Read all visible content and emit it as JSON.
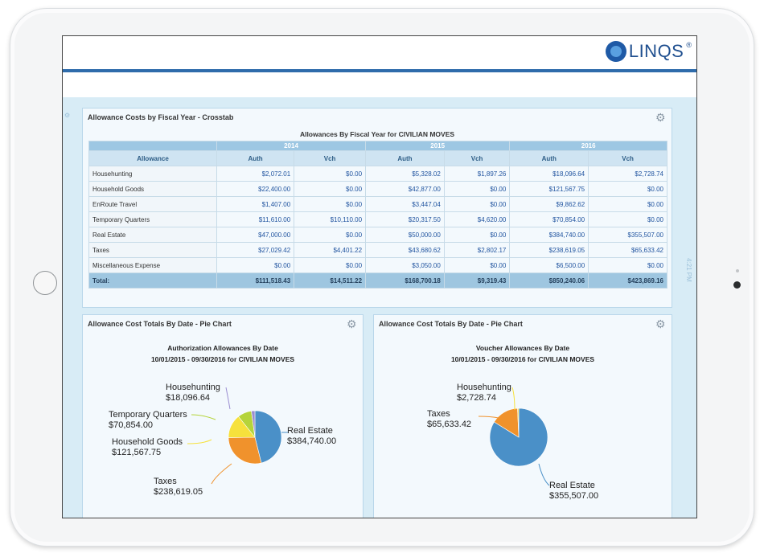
{
  "brand": {
    "logo_text": "LINQS",
    "logo_reg": "®"
  },
  "crosstab": {
    "panel_title": "Allowance Costs by Fiscal Year - Crosstab",
    "table_title": "Allowances By Fiscal Year for CIVILIAN MOVES",
    "years": [
      "2014",
      "2015",
      "2016"
    ],
    "col_allowance": "Allowance",
    "col_auth": "Auth",
    "col_vch": "Vch",
    "rows": [
      {
        "name": "Househunting",
        "v": [
          "$2,072.01",
          "$0.00",
          "$5,328.02",
          "$1,897.26",
          "$18,096.64",
          "$2,728.74"
        ]
      },
      {
        "name": "Household Goods",
        "v": [
          "$22,400.00",
          "$0.00",
          "$42,877.00",
          "$0.00",
          "$121,567.75",
          "$0.00"
        ]
      },
      {
        "name": "EnRoute Travel",
        "v": [
          "$1,407.00",
          "$0.00",
          "$3,447.04",
          "$0.00",
          "$9,862.62",
          "$0.00"
        ]
      },
      {
        "name": "Temporary Quarters",
        "v": [
          "$11,610.00",
          "$10,110.00",
          "$20,317.50",
          "$4,620.00",
          "$70,854.00",
          "$0.00"
        ]
      },
      {
        "name": "Real Estate",
        "v": [
          "$47,000.00",
          "$0.00",
          "$50,000.00",
          "$0.00",
          "$384,740.00",
          "$355,507.00"
        ]
      },
      {
        "name": "Taxes",
        "v": [
          "$27,029.42",
          "$4,401.22",
          "$43,680.62",
          "$2,802.17",
          "$238,619.05",
          "$65,633.42"
        ]
      },
      {
        "name": "Miscellaneous Expense",
        "v": [
          "$0.00",
          "$0.00",
          "$3,050.00",
          "$0.00",
          "$6,500.00",
          "$0.00"
        ]
      }
    ],
    "total": {
      "name": "Total:",
      "v": [
        "$111,518.43",
        "$14,511.22",
        "$168,700.18",
        "$9,319.43",
        "$850,240.06",
        "$423,869.16"
      ]
    }
  },
  "auth_pie": {
    "panel_title": "Allowance Cost Totals By Date - Pie Chart",
    "title_line1": "Authorization Allowances By Date",
    "title_line2": "10/01/2015 - 09/30/2016 for CIVILIAN MOVES",
    "chart_data": {
      "type": "pie",
      "slices": [
        {
          "label": "Real Estate",
          "value_text": "$384,740.00",
          "value": 384740.0,
          "color": "#4a90c8"
        },
        {
          "label": "Taxes",
          "value_text": "$238,619.05",
          "value": 238619.05,
          "color": "#f0922c"
        },
        {
          "label": "Household Goods",
          "value_text": "$121,567.75",
          "value": 121567.75,
          "color": "#f6e13c"
        },
        {
          "label": "Temporary Quarters",
          "value_text": "$70,854.00",
          "value": 70854.0,
          "color": "#b5d43a"
        },
        {
          "label": "Househunting",
          "value_text": "$18,096.64",
          "value": 18096.64,
          "color": "#9b8ed1"
        }
      ]
    }
  },
  "vch_pie": {
    "panel_title": "Allowance Cost Totals By Date - Pie Chart",
    "title_line1": "Voucher Allowances By Date",
    "title_line2": "10/01/2015 - 09/30/2016 for CIVILIAN MOVES",
    "chart_data": {
      "type": "pie",
      "slices": [
        {
          "label": "Real Estate",
          "value_text": "$355,507.00",
          "value": 355507.0,
          "color": "#4a90c8"
        },
        {
          "label": "Taxes",
          "value_text": "$65,633.42",
          "value": 65633.42,
          "color": "#f0922c"
        },
        {
          "label": "Househunting",
          "value_text": "$2,728.74",
          "value": 2728.74,
          "color": "#f6e13c"
        }
      ]
    }
  },
  "side_time": "4:21 PM"
}
